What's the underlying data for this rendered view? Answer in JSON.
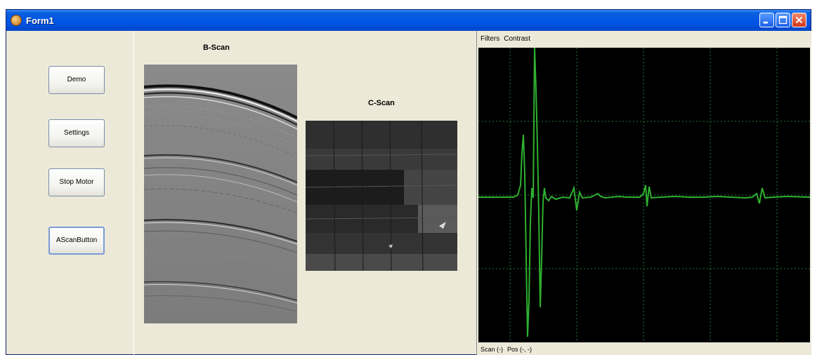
{
  "window": {
    "title": "Form1"
  },
  "left_panel": {
    "buttons": [
      {
        "label": "Demo"
      },
      {
        "label": "Settings"
      },
      {
        "label": "Stop Motor"
      },
      {
        "label": "AScanButton"
      }
    ]
  },
  "bscan": {
    "title": "B-Scan"
  },
  "cscan": {
    "title": "C-Scan"
  },
  "scope": {
    "menu": {
      "filters": "Filters",
      "contrast": "Contrast"
    },
    "status": {
      "scan": "Scan (-)",
      "pos": "Pos (-, -)"
    },
    "colors": {
      "trace": "#2fb02f",
      "grid": "#1f7a3a",
      "background": "#000000"
    }
  }
}
